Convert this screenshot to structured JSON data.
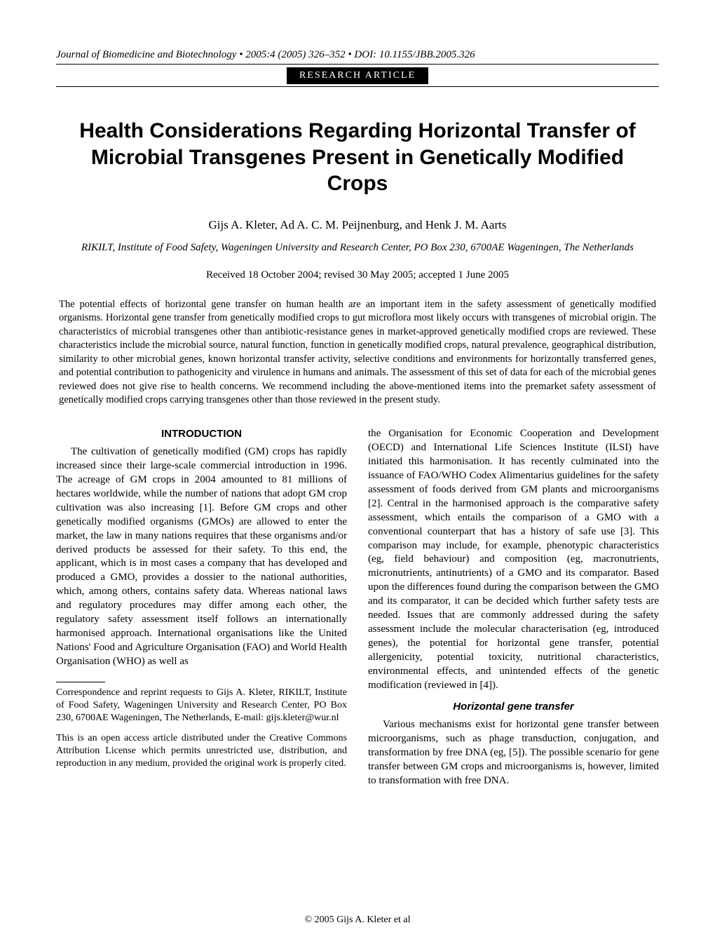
{
  "header": {
    "journal_line": "Journal of Biomedicine and Biotechnology • 2005:4 (2005) 326–352 • DOI: 10.1155/JBB.2005.326",
    "badge": "RESEARCH  ARTICLE"
  },
  "title": "Health Considerations Regarding Horizontal Transfer of Microbial Transgenes Present in Genetically Modified Crops",
  "authors": "Gijs A. Kleter, Ad A. C. M. Peijnenburg, and Henk J. M. Aarts",
  "affiliation": "RIKILT, Institute of Food Safety, Wageningen University and Research Center, PO Box 230, 6700AE Wageningen, The Netherlands",
  "dates": "Received 18 October 2004; revised 30 May 2005; accepted 1 June 2005",
  "abstract": "The potential effects of horizontal gene transfer on human health are an important item in the safety assessment of genetically modified organisms. Horizontal gene transfer from genetically modified crops to gut microflora most likely occurs with transgenes of microbial origin. The characteristics of microbial transgenes other than antibiotic-resistance genes in market-approved genetically modified crops are reviewed. These characteristics include the microbial source, natural function, function in genetically modified crops, natural prevalence, geographical distribution, similarity to other microbial genes, known horizontal transfer activity, selective conditions and environments for horizontally transferred genes, and potential contribution to pathogenicity and virulence in humans and animals. The assessment of this set of data for each of the microbial genes reviewed does not give rise to health concerns. We recommend including the above-mentioned items into the premarket safety assessment of genetically modified crops carrying transgenes other than those reviewed in the present study.",
  "left_col": {
    "heading": "INTRODUCTION",
    "p1": "The cultivation of genetically modified (GM) crops has rapidly increased since their large-scale commercial introduction in 1996. The acreage of GM crops in 2004 amounted to 81 millions of hectares worldwide, while the number of nations that adopt GM crop cultivation was also increasing [1]. Before GM crops and other genetically modified organisms (GMOs) are allowed to enter the market, the law in many nations requires that these organisms and/or derived products be assessed for their safety. To this end, the applicant, which is in most cases a company that has developed and produced a GMO, provides a dossier to the national authorities, which, among others, contains safety data. Whereas national laws and regulatory procedures may differ among each other, the regulatory safety assessment itself follows an internationally harmonised approach. International organisations like the United Nations' Food and Agriculture Organisation (FAO) and World Health Organisation (WHO) as well as",
    "footnote1": "Correspondence and reprint requests to Gijs A. Kleter, RIKILT, Institute of Food Safety, Wageningen University and Research Center, PO Box 230, 6700AE Wageningen, The Netherlands, E-mail: gijs.kleter@wur.nl",
    "footnote2": "This is an open access article distributed under the Creative Commons Attribution License which permits unrestricted use, distribution, and reproduction in any medium, provided the original work is properly cited."
  },
  "right_col": {
    "p1": "the Organisation for Economic Cooperation and Development (OECD) and International Life Sciences Institute (ILSI) have initiated this harmonisation. It has recently culminated into the issuance of FAO/WHO Codex Alimentarius guidelines for the safety assessment of foods derived from GM plants and microorganisms [2]. Central in the harmonised approach is the comparative safety assessment, which entails the comparison of a GMO with a conventional counterpart that has a history of safe use [3]. This comparison may include, for example, phenotypic characteristics (eg, field behaviour) and composition (eg, macronutrients, micronutrients, antinutrients) of a GMO and its comparator. Based upon the differences found during the comparison between the GMO and its comparator, it can be decided which further safety tests are needed. Issues that are commonly addressed during the safety assessment include the molecular characterisation (eg, introduced genes), the potential for horizontal gene transfer, potential allergenicity, potential toxicity, nutritional characteristics, environmental effects, and unintended effects of the genetic modification (reviewed in [4]).",
    "subheading": "Horizontal gene transfer",
    "p2": "Various mechanisms exist for horizontal gene transfer between microorganisms, such as phage transduction, conjugation, and transformation by free DNA (eg, [5]). The possible scenario for gene transfer between GM crops and microorganisms is, however, limited to transformation with free DNA."
  },
  "copyright": "© 2005 Gijs A. Kleter et al"
}
